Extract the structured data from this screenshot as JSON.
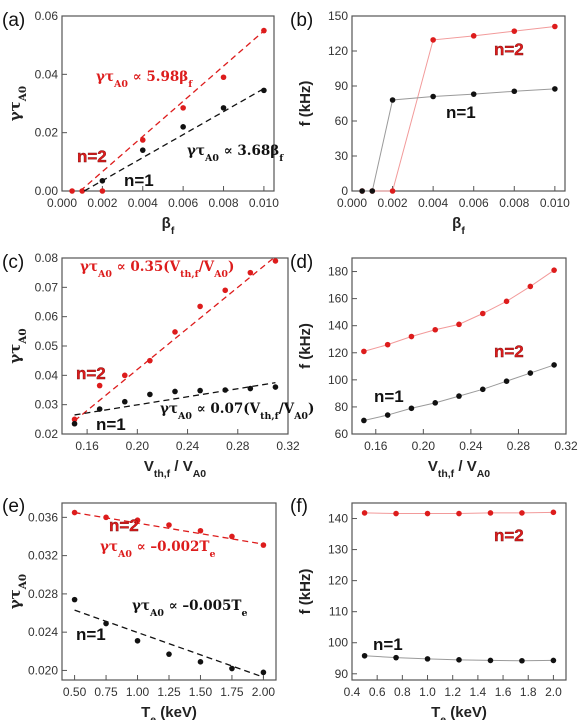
{
  "colors": {
    "red": "#dd1c1c",
    "black": "#111111",
    "axis": "#555555",
    "red_line": "#f29a9a",
    "black_line": "#9a9a9a"
  },
  "chart_data": [
    {
      "panel": "(a)",
      "type": "scatter",
      "xlabel": "β",
      "xlabel_sub": "f",
      "ylabel": "γτ",
      "ylabel_sub": "A0",
      "xlim": [
        0,
        0.0105
      ],
      "ylim": [
        0,
        0.06
      ],
      "xticks": [
        "0.000",
        "0.002",
        "0.004",
        "0.006",
        "0.008",
        "0.010"
      ],
      "yticks": [
        "0.00",
        "0.02",
        "0.04",
        "0.06"
      ],
      "series": [
        {
          "name": "n=2",
          "color": "red",
          "x": [
            0.0005,
            0.001,
            0.002,
            0.004,
            0.006,
            0.008,
            0.01
          ],
          "y": [
            0.0,
            0.0,
            0.0,
            0.0175,
            0.0285,
            0.039,
            0.055
          ],
          "fit": [
            [
              0.0009,
              0.0
            ],
            [
              0.0101,
              0.0555
            ]
          ]
        },
        {
          "name": "n=1",
          "color": "black",
          "x": [
            0.002,
            0.004,
            0.006,
            0.008,
            0.01
          ],
          "y": [
            0.0035,
            0.014,
            0.022,
            0.0285,
            0.0345
          ],
          "fit": [
            [
              0.0011,
              0.0
            ],
            [
              0.0101,
              0.0355
            ]
          ]
        }
      ],
      "annotations": [
        {
          "pre": "γτ",
          "sub": "A0",
          "mid": " ∝ 5.98β",
          "sub2": "f",
          "post": "",
          "color": "red"
        },
        {
          "pre": "γτ",
          "sub": "A0",
          "mid": " ∝ 3.68β",
          "sub2": "f",
          "post": "",
          "color": "black"
        }
      ],
      "labels": [
        {
          "text": "n=2",
          "color": "red"
        },
        {
          "text": "n=1",
          "color": "black"
        }
      ]
    },
    {
      "panel": "(b)",
      "type": "line",
      "xlabel": "β",
      "xlabel_sub": "f",
      "ylabel": "f (kHz)",
      "xlim": [
        0,
        0.0105
      ],
      "ylim": [
        0,
        150
      ],
      "xticks": [
        "0.000",
        "0.002",
        "0.004",
        "0.006",
        "0.008",
        "0.010"
      ],
      "yticks": [
        "0",
        "30",
        "60",
        "90",
        "120",
        "150"
      ],
      "series": [
        {
          "name": "n=2",
          "color": "red",
          "x": [
            0.0005,
            0.001,
            0.002,
            0.004,
            0.006,
            0.008,
            0.01
          ],
          "y": [
            0,
            0,
            0,
            129.5,
            133,
            137,
            141
          ]
        },
        {
          "name": "n=1",
          "color": "black",
          "x": [
            0.0005,
            0.001,
            0.002,
            0.004,
            0.006,
            0.008,
            0.01
          ],
          "y": [
            0,
            0,
            78,
            81,
            83,
            85.5,
            87.5
          ]
        }
      ],
      "labels": [
        {
          "text": "n=2",
          "color": "red"
        },
        {
          "text": "n=1",
          "color": "black"
        }
      ]
    },
    {
      "panel": "(c)",
      "type": "scatter",
      "xlabel": "V",
      "xlabel_sub": "th,f",
      "xlabel_post": " / V",
      "xlabel_sub2": "A0",
      "ylabel": "γτ",
      "ylabel_sub": "A0",
      "xlim": [
        0.14,
        0.32
      ],
      "ylim": [
        0.02,
        0.08
      ],
      "xticks": [
        "0.16",
        "0.20",
        "0.24",
        "0.28",
        "0.32"
      ],
      "yticks": [
        "0.02",
        "0.03",
        "0.04",
        "0.05",
        "0.06",
        "0.07",
        "0.08"
      ],
      "series": [
        {
          "name": "n=2",
          "color": "red",
          "x": [
            0.15,
            0.17,
            0.19,
            0.21,
            0.23,
            0.25,
            0.27,
            0.29,
            0.31
          ],
          "y": [
            0.025,
            0.0365,
            0.04,
            0.045,
            0.0548,
            0.0635,
            0.069,
            0.075,
            0.079
          ],
          "fit": [
            [
              0.15,
              0.0245
            ],
            [
              0.31,
              0.0805
            ]
          ]
        },
        {
          "name": "n=1",
          "color": "black",
          "x": [
            0.15,
            0.17,
            0.19,
            0.21,
            0.23,
            0.25,
            0.27,
            0.29,
            0.31
          ],
          "y": [
            0.0235,
            0.0285,
            0.031,
            0.0335,
            0.0345,
            0.0348,
            0.035,
            0.0355,
            0.036
          ],
          "fit": [
            [
              0.15,
              0.0265
            ],
            [
              0.31,
              0.0375
            ]
          ]
        }
      ],
      "annotations": [
        {
          "pre": "γτ",
          "sub": "A0",
          "mid": " ∝ 0.35(V",
          "sub2": "th,f",
          "post": "/V",
          "sub3": "A0",
          "end": ")",
          "color": "red"
        },
        {
          "pre": "γτ",
          "sub": "A0",
          "mid": " ∝ 0.07(V",
          "sub2": "th,f",
          "post": "/V",
          "sub3": "A0",
          "end": ")",
          "color": "black"
        }
      ],
      "labels": [
        {
          "text": "n=2",
          "color": "red"
        },
        {
          "text": "n=1",
          "color": "black"
        }
      ]
    },
    {
      "panel": "(d)",
      "type": "line",
      "xlabel": "V",
      "xlabel_sub": "th,f",
      "xlabel_post": " / V",
      "xlabel_sub2": "A0",
      "ylabel": "f (kHz)",
      "xlim": [
        0.14,
        0.32
      ],
      "ylim": [
        60,
        190
      ],
      "xticks": [
        "0.16",
        "0.20",
        "0.24",
        "0.28",
        "0.32"
      ],
      "yticks": [
        "60",
        "80",
        "100",
        "120",
        "140",
        "160",
        "180"
      ],
      "series": [
        {
          "name": "n=2",
          "color": "red",
          "x": [
            0.15,
            0.17,
            0.19,
            0.21,
            0.23,
            0.25,
            0.27,
            0.29,
            0.31
          ],
          "y": [
            121,
            126,
            132,
            137,
            141,
            149,
            158,
            169,
            181
          ]
        },
        {
          "name": "n=1",
          "color": "black",
          "x": [
            0.15,
            0.17,
            0.19,
            0.21,
            0.23,
            0.25,
            0.27,
            0.29,
            0.31
          ],
          "y": [
            70,
            74,
            79,
            83,
            88,
            93,
            99,
            105,
            111
          ]
        }
      ],
      "labels": [
        {
          "text": "n=2",
          "color": "red"
        },
        {
          "text": "n=1",
          "color": "black"
        }
      ]
    },
    {
      "panel": "(e)",
      "type": "scatter",
      "xlabel": "T",
      "xlabel_sub": "e",
      "xlabel_post": " (keV)",
      "ylabel": "γτ",
      "ylabel_sub": "A0",
      "xlim": [
        0.4,
        2.1
      ],
      "ylim": [
        0.019,
        0.0375
      ],
      "xticks": [
        "0.50",
        "0.75",
        "1.00",
        "1.25",
        "1.50",
        "1.75",
        "2.00"
      ],
      "yticks": [
        "0.020",
        "0.024",
        "0.028",
        "0.032",
        "0.036"
      ],
      "series": [
        {
          "name": "n=2",
          "color": "red",
          "x": [
            0.5,
            0.75,
            1.0,
            1.25,
            1.5,
            1.75,
            2.0
          ],
          "y": [
            0.0365,
            0.036,
            0.0357,
            0.0352,
            0.0346,
            0.034,
            0.0331
          ],
          "fit": [
            [
              0.5,
              0.0365
            ],
            [
              2.0,
              0.0332
            ]
          ]
        },
        {
          "name": "n=1",
          "color": "black",
          "x": [
            0.5,
            0.75,
            1.0,
            1.25,
            1.5,
            1.75,
            2.0
          ],
          "y": [
            0.0274,
            0.0249,
            0.0231,
            0.0217,
            0.0209,
            0.0202,
            0.0198
          ],
          "fit": [
            [
              0.5,
              0.0263
            ],
            [
              2.0,
              0.0193
            ]
          ]
        }
      ],
      "annotations": [
        {
          "pre": "γτ",
          "sub": "A0",
          "mid": " ∝ –0.002T",
          "sub2": "e",
          "post": "",
          "color": "red"
        },
        {
          "pre": "γτ",
          "sub": "A0",
          "mid": " ∝ –0.005T",
          "sub2": "e",
          "post": "",
          "color": "black"
        }
      ],
      "labels": [
        {
          "text": "n=2",
          "color": "red"
        },
        {
          "text": "n=1",
          "color": "black"
        }
      ]
    },
    {
      "panel": "(f)",
      "type": "line",
      "xlabel": "T",
      "xlabel_sub": "e",
      "xlabel_post": " (keV)",
      "ylabel": "f (kHz)",
      "xlim": [
        0.4,
        2.1
      ],
      "ylim": [
        88,
        145
      ],
      "xticks": [
        "0.4",
        "0.6",
        "0.8",
        "1.0",
        "1.2",
        "1.4",
        "1.6",
        "1.8",
        "2.0"
      ],
      "yticks": [
        "90",
        "100",
        "110",
        "120",
        "130",
        "140"
      ],
      "series": [
        {
          "name": "n=2",
          "color": "red",
          "x": [
            0.5,
            0.75,
            1.0,
            1.25,
            1.5,
            1.75,
            2.0
          ],
          "y": [
            141.8,
            141.6,
            141.6,
            141.6,
            141.8,
            141.8,
            142.0
          ]
        },
        {
          "name": "n=1",
          "color": "black",
          "x": [
            0.5,
            0.75,
            1.0,
            1.25,
            1.5,
            1.75,
            2.0
          ],
          "y": [
            95.8,
            95.2,
            94.8,
            94.5,
            94.3,
            94.2,
            94.3
          ]
        }
      ],
      "labels": [
        {
          "text": "n=2",
          "color": "red"
        },
        {
          "text": "n=1",
          "color": "black"
        }
      ]
    }
  ]
}
